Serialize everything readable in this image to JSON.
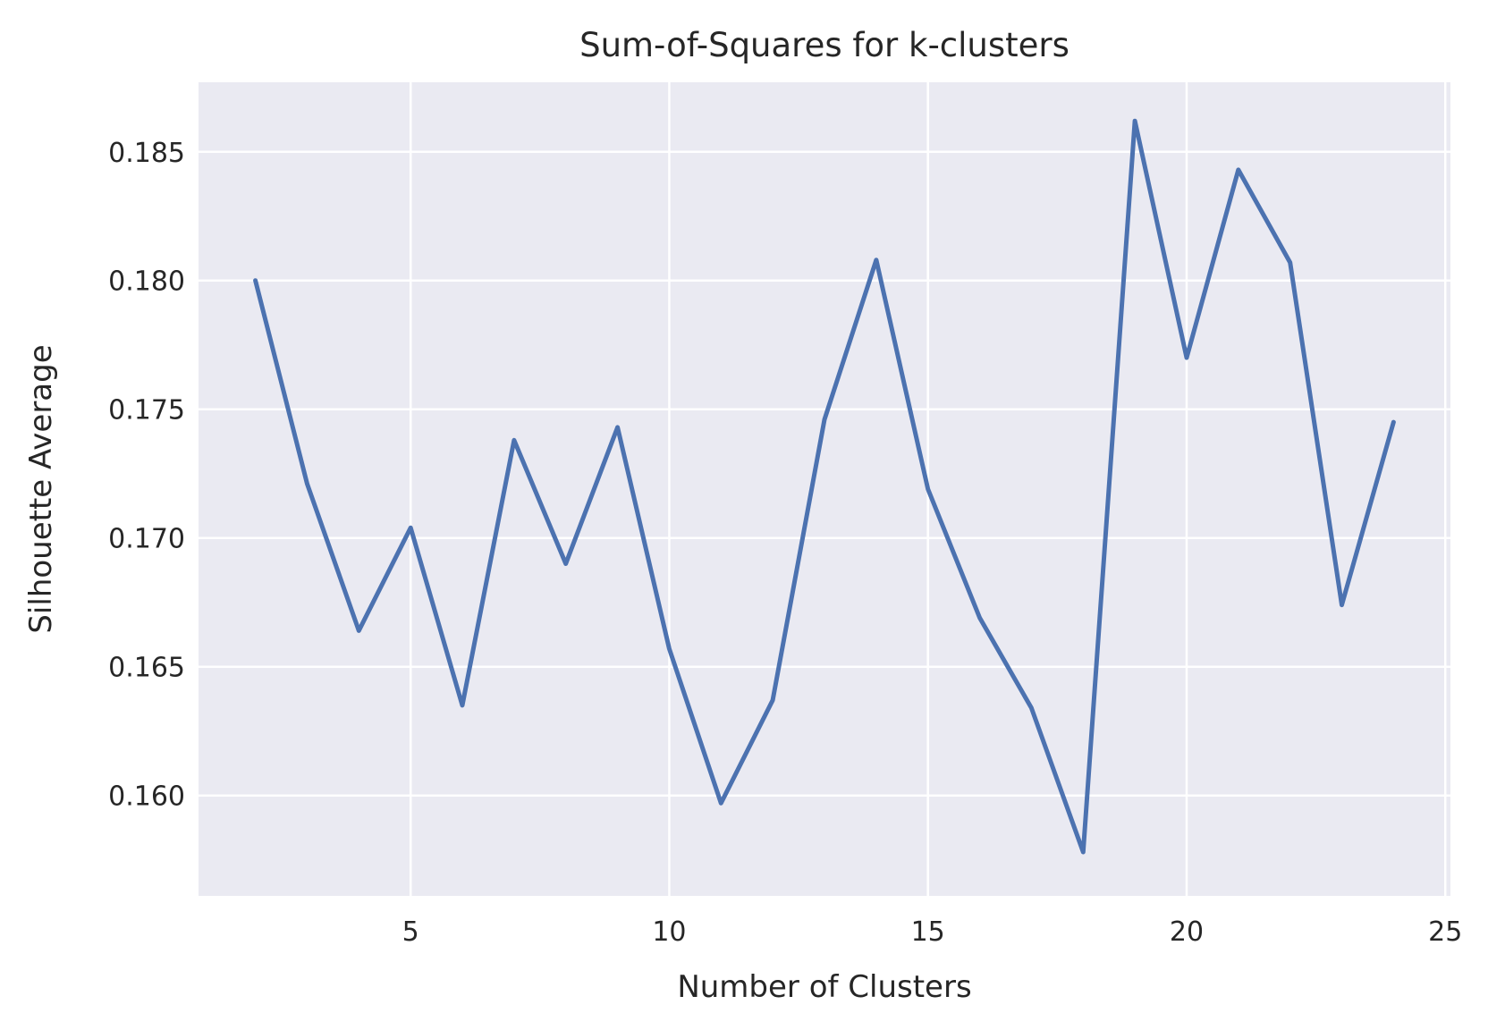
{
  "chart_data": {
    "type": "line",
    "title": "Sum-of-Squares for k-clusters",
    "xlabel": "Number of Clusters",
    "ylabel": "Silhouette Average",
    "xlim": [
      0.9,
      25.1
    ],
    "ylim": [
      0.1561,
      0.1877
    ],
    "xticks": [
      5,
      10,
      15,
      20,
      25
    ],
    "yticks": [
      0.16,
      0.165,
      0.17,
      0.175,
      0.18,
      0.185
    ],
    "xtick_labels": [
      "5",
      "10",
      "15",
      "20",
      "25"
    ],
    "ytick_labels": [
      "0.160",
      "0.165",
      "0.170",
      "0.175",
      "0.180",
      "0.185"
    ],
    "grid": true,
    "background_color": "#eaeaf2",
    "series": [
      {
        "color": "#4c72b0",
        "x": [
          2,
          3,
          4,
          5,
          6,
          7,
          8,
          9,
          10,
          11,
          12,
          13,
          14,
          15,
          16,
          17,
          18,
          19,
          20,
          21,
          22,
          23,
          24
        ],
        "y": [
          0.18,
          0.1721,
          0.1664,
          0.1704,
          0.1635,
          0.1738,
          0.169,
          0.1743,
          0.1657,
          0.1597,
          0.1637,
          0.1746,
          0.1808,
          0.1719,
          0.1669,
          0.1634,
          0.1578,
          0.1862,
          0.177,
          0.1843,
          0.1807,
          0.1674,
          0.1745
        ]
      }
    ]
  }
}
